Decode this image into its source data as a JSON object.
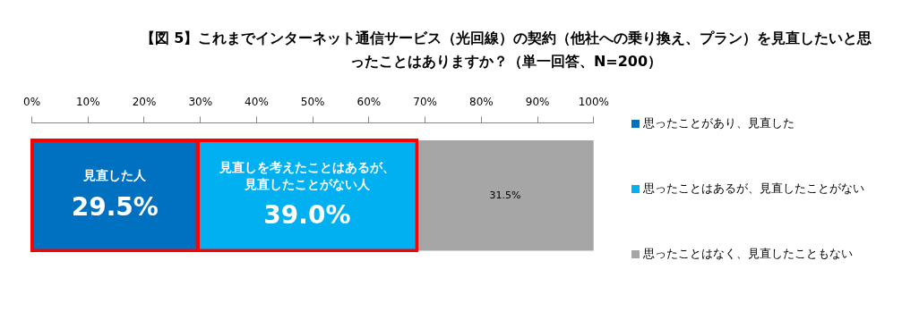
{
  "chart_data": {
    "type": "bar",
    "orientation": "horizontal",
    "stacked": true,
    "title": "【図 5】これまでインターネット通信サービス（光回線）の契約（他社への乗り換え、プラン）を見直したいと思ったことはありますか？（単一回答、N=200）",
    "categories": [
      null
    ],
    "series": [
      {
        "name": "思ったことがあり、見直した",
        "color": "#0070c0",
        "values": [
          29.5
        ],
        "value_labels": [
          "29.5%"
        ]
      },
      {
        "name": "思ったことはあるが、見直したことがない",
        "color": "#00b0f0",
        "values": [
          39.0
        ],
        "value_labels": [
          "39.0%"
        ]
      },
      {
        "name": "思ったことはなく、見直したこともない",
        "color": "#a6a6a6",
        "values": [
          31.5
        ],
        "value_labels": [
          "31.5%"
        ]
      }
    ],
    "xlim": [
      0,
      100
    ],
    "xticks": [
      {
        "value": 0,
        "label": "0%"
      },
      {
        "value": 10,
        "label": "10%"
      },
      {
        "value": 20,
        "label": "20%"
      },
      {
        "value": 30,
        "label": "30%"
      },
      {
        "value": 40,
        "label": "40%"
      },
      {
        "value": 50,
        "label": "50%"
      },
      {
        "value": 60,
        "label": "60%"
      },
      {
        "value": 70,
        "label": "70%"
      },
      {
        "value": 80,
        "label": "80%"
      },
      {
        "value": 90,
        "label": "90%"
      },
      {
        "value": 100,
        "label": "100%"
      }
    ],
    "annotations": [
      "見直した人",
      "見直しを考えたことはあるが、見直したことがない人"
    ],
    "grid": false,
    "legend": "right"
  }
}
